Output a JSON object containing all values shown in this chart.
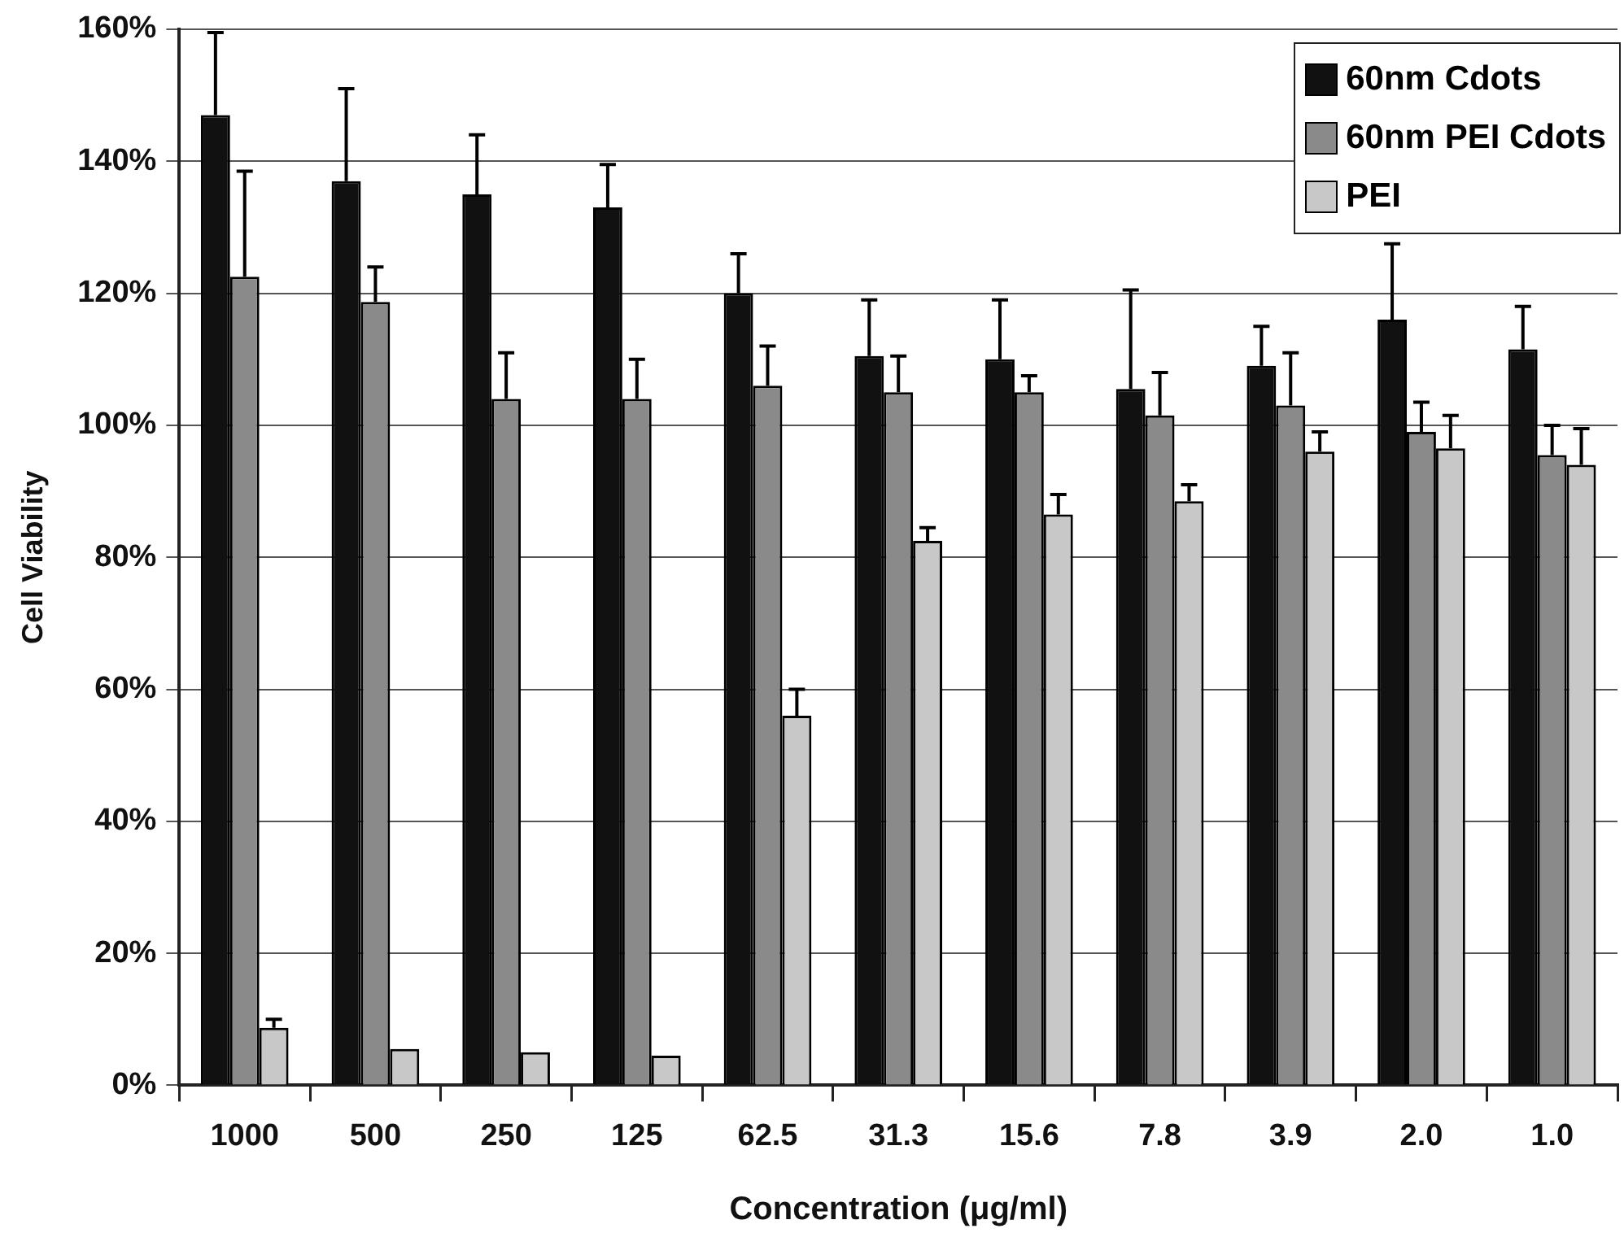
{
  "chart_data": {
    "type": "bar",
    "xlabel": "Concentration (μg/ml)",
    "ylabel": "Cell Viability",
    "categories": [
      "1000",
      "500",
      "250",
      "125",
      "62.5",
      "31.3",
      "15.6",
      "7.8",
      "3.9",
      "2.0",
      "1.0"
    ],
    "series": [
      {
        "name": "60nm Cdots",
        "color": "#111111",
        "values": [
          147,
          137,
          135,
          133,
          120,
          110.5,
          110,
          105.5,
          109,
          116,
          111.5
        ],
        "errors": [
          [
            147,
            159.5
          ],
          [
            137,
            151
          ],
          [
            135,
            144
          ],
          [
            133,
            139.5
          ],
          [
            120,
            126
          ],
          [
            110.5,
            119
          ],
          [
            110,
            119
          ],
          [
            105.5,
            120.5
          ],
          [
            109,
            115
          ],
          [
            116,
            127.5
          ],
          [
            111.5,
            118
          ]
        ]
      },
      {
        "name": "60nm PEI Cdots",
        "color": "#8a8a8a",
        "values": [
          122.5,
          118.7,
          104,
          104,
          106,
          105,
          105,
          101.5,
          103,
          99,
          95.5
        ],
        "errors": [
          [
            122.5,
            138.5
          ],
          [
            118.7,
            124
          ],
          [
            104,
            111
          ],
          [
            104,
            110
          ],
          [
            106,
            112
          ],
          [
            105,
            110.5
          ],
          [
            105,
            107.5
          ],
          [
            101.5,
            108
          ],
          [
            103,
            111
          ],
          [
            99,
            103.5
          ],
          [
            95.5,
            100
          ]
        ]
      },
      {
        "name": "PEI",
        "color": "#c8c8c8",
        "values": [
          8.7,
          5.5,
          5,
          4.5,
          56,
          82.5,
          86.5,
          88.5,
          96,
          96.5,
          94
        ],
        "errors": [
          [
            8.7,
            10
          ],
          null,
          null,
          null,
          [
            56,
            60
          ],
          [
            82.5,
            84.5
          ],
          [
            86.5,
            89.5
          ],
          [
            88.5,
            91
          ],
          [
            96,
            99
          ],
          [
            96.5,
            101.5
          ],
          [
            94,
            99.5
          ]
        ]
      }
    ],
    "ylim": [
      0,
      160
    ],
    "yticks": [
      {
        "value": 0,
        "label": "0%"
      },
      {
        "value": 20,
        "label": "20%"
      },
      {
        "value": 40,
        "label": "40%"
      },
      {
        "value": 60,
        "label": "60%"
      },
      {
        "value": 80,
        "label": "80%"
      },
      {
        "value": 100,
        "label": "100%"
      },
      {
        "value": 120,
        "label": "120%"
      },
      {
        "value": 140,
        "label": "140%"
      },
      {
        "value": 160,
        "label": "160%"
      }
    ],
    "grid": "y",
    "legend": "top right"
  }
}
